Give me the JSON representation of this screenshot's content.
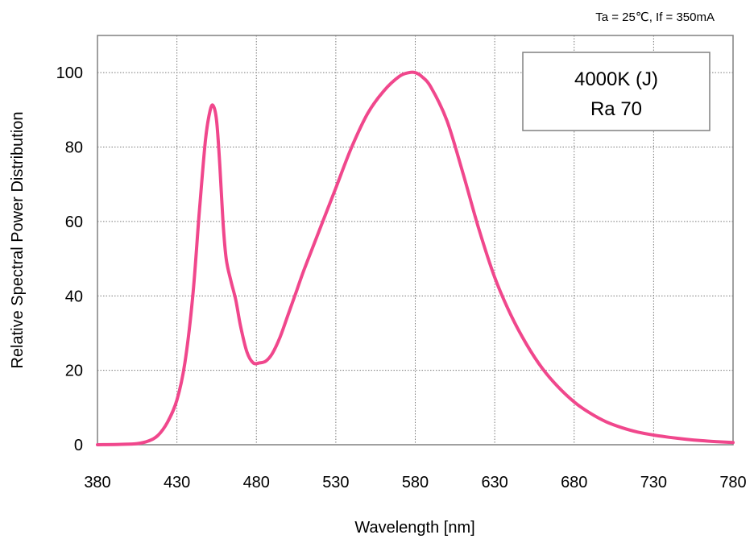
{
  "chart_data": {
    "type": "line",
    "title": "",
    "conditions": "Ta = 25℃,  If = 350mA",
    "xlabel": "Wavelength [nm]",
    "ylabel": "Relative Spectral Power Distribution",
    "xlim": [
      380,
      780
    ],
    "ylim": [
      0,
      110
    ],
    "xticks": [
      380,
      430,
      480,
      530,
      580,
      630,
      680,
      730,
      780
    ],
    "yticks": [
      0,
      20,
      40,
      60,
      80,
      100
    ],
    "grid": true,
    "legend_box": {
      "line1": "4000K (J)",
      "line2": "Ra 70",
      "placement": "top-right"
    },
    "series_color": "#f0478c",
    "series": [
      {
        "x": [
          380,
          395,
          405,
          412,
          418,
          424,
          430,
          435,
          440,
          444,
          448,
          451,
          453,
          455,
          457,
          459,
          461,
          464,
          467,
          470,
          474,
          478,
          482,
          486,
          490,
          495,
          500,
          505,
          510,
          520,
          530,
          540,
          550,
          560,
          570,
          576,
          580,
          584,
          590,
          600,
          610,
          620,
          630,
          640,
          650,
          660,
          670,
          680,
          690,
          700,
          710,
          720,
          730,
          740,
          750,
          760,
          770,
          780
        ],
        "y": [
          0,
          0.1,
          0.3,
          1,
          2.5,
          6,
          12,
          22,
          40,
          62,
          82,
          90,
          91,
          87,
          75,
          60,
          50,
          44,
          39,
          32,
          25,
          22,
          22,
          22.5,
          24.5,
          29,
          35,
          41,
          47,
          58,
          69,
          80,
          89,
          95,
          99,
          100,
          100,
          99,
          96,
          87,
          73,
          58,
          45,
          35,
          27,
          20.5,
          15.5,
          11.5,
          8.5,
          6.2,
          4.6,
          3.4,
          2.6,
          2,
          1.5,
          1.1,
          0.8,
          0.6
        ]
      }
    ]
  }
}
